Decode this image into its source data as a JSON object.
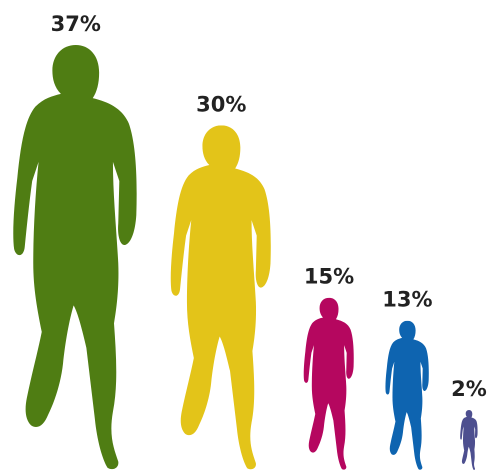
{
  "chart_data": {
    "type": "bar",
    "categories": [
      "",
      "",
      "",
      "",
      ""
    ],
    "values": [
      37,
      30,
      15,
      13,
      2
    ],
    "labels": [
      "37%",
      "30%",
      "15%",
      "13%",
      "2%"
    ],
    "colors": [
      "#4f7d13",
      "#e3c419",
      "#b5075f",
      "#0e64b0",
      "#4d4f8f"
    ],
    "mark_shape": "runner-silhouette",
    "title": "",
    "xlabel": "",
    "ylabel": ""
  }
}
